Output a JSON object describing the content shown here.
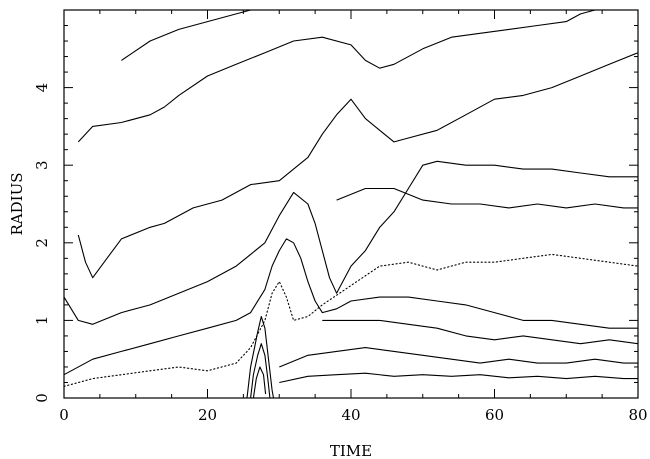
{
  "chart_data": {
    "type": "contour",
    "title": "",
    "xlabel": "TIME",
    "ylabel": "RADIUS",
    "xlim": [
      0,
      80
    ],
    "ylim": [
      0,
      5
    ],
    "xticks": [
      0,
      20,
      40,
      60,
      80
    ],
    "yticks": [
      0,
      1,
      2,
      3,
      4
    ],
    "grid": false,
    "legend": "none",
    "series": [
      {
        "style": "solid",
        "points": [
          [
            0,
            0.3
          ],
          [
            4,
            0.5
          ],
          [
            8,
            0.6
          ],
          [
            12,
            0.7
          ],
          [
            16,
            0.8
          ],
          [
            20,
            0.9
          ],
          [
            24,
            1.0
          ],
          [
            26,
            1.1
          ],
          [
            28,
            1.4
          ],
          [
            29,
            1.7
          ],
          [
            30,
            1.9
          ],
          [
            31,
            2.05
          ],
          [
            32,
            2.0
          ],
          [
            33,
            1.8
          ],
          [
            34,
            1.5
          ],
          [
            35,
            1.25
          ],
          [
            36,
            1.1
          ],
          [
            38,
            1.15
          ],
          [
            40,
            1.25
          ],
          [
            44,
            1.3
          ],
          [
            48,
            1.3
          ],
          [
            52,
            1.25
          ],
          [
            56,
            1.2
          ],
          [
            60,
            1.1
          ],
          [
            64,
            1.0
          ],
          [
            68,
            1.0
          ],
          [
            72,
            0.95
          ],
          [
            76,
            0.9
          ],
          [
            80,
            0.9
          ]
        ]
      },
      {
        "style": "solid",
        "points": [
          [
            0,
            1.3
          ],
          [
            2,
            1.0
          ],
          [
            4,
            0.95
          ],
          [
            8,
            1.1
          ],
          [
            12,
            1.2
          ],
          [
            16,
            1.35
          ],
          [
            20,
            1.5
          ],
          [
            24,
            1.7
          ],
          [
            26,
            1.85
          ],
          [
            28,
            2.0
          ],
          [
            30,
            2.35
          ],
          [
            32,
            2.65
          ],
          [
            34,
            2.5
          ],
          [
            35,
            2.25
          ],
          [
            36,
            1.9
          ],
          [
            37,
            1.55
          ],
          [
            38,
            1.35
          ],
          [
            40,
            1.7
          ],
          [
            42,
            1.9
          ],
          [
            44,
            2.2
          ],
          [
            46,
            2.4
          ],
          [
            48,
            2.7
          ],
          [
            50,
            3.0
          ],
          [
            52,
            3.05
          ],
          [
            56,
            3.0
          ],
          [
            60,
            3.0
          ],
          [
            64,
            2.95
          ],
          [
            68,
            2.95
          ],
          [
            72,
            2.9
          ],
          [
            76,
            2.85
          ],
          [
            80,
            2.85
          ]
        ]
      },
      {
        "style": "solid",
        "points": [
          [
            2,
            2.1
          ],
          [
            3,
            1.75
          ],
          [
            4,
            1.55
          ],
          [
            6,
            1.8
          ],
          [
            8,
            2.05
          ],
          [
            12,
            2.2
          ],
          [
            14,
            2.25
          ],
          [
            18,
            2.45
          ],
          [
            22,
            2.55
          ],
          [
            26,
            2.75
          ],
          [
            30,
            2.8
          ],
          [
            34,
            3.1
          ],
          [
            36,
            3.4
          ],
          [
            38,
            3.65
          ],
          [
            40,
            3.85
          ],
          [
            42,
            3.6
          ],
          [
            44,
            3.45
          ],
          [
            46,
            3.3
          ],
          [
            48,
            3.35
          ],
          [
            52,
            3.45
          ],
          [
            56,
            3.65
          ],
          [
            60,
            3.85
          ],
          [
            64,
            3.9
          ],
          [
            68,
            4.0
          ],
          [
            72,
            4.15
          ],
          [
            76,
            4.3
          ],
          [
            80,
            4.45
          ]
        ]
      },
      {
        "style": "solid",
        "points": [
          [
            2,
            3.3
          ],
          [
            4,
            3.5
          ],
          [
            8,
            3.55
          ],
          [
            12,
            3.65
          ],
          [
            14,
            3.75
          ],
          [
            16,
            3.9
          ],
          [
            20,
            4.15
          ],
          [
            24,
            4.3
          ],
          [
            28,
            4.45
          ],
          [
            32,
            4.6
          ],
          [
            36,
            4.65
          ],
          [
            40,
            4.55
          ],
          [
            42,
            4.35
          ],
          [
            44,
            4.25
          ],
          [
            46,
            4.3
          ],
          [
            50,
            4.5
          ],
          [
            54,
            4.65
          ],
          [
            58,
            4.7
          ],
          [
            62,
            4.75
          ],
          [
            66,
            4.8
          ],
          [
            70,
            4.85
          ],
          [
            72,
            4.95
          ],
          [
            74,
            5.0
          ]
        ]
      },
      {
        "style": "solid",
        "points": [
          [
            8,
            4.35
          ],
          [
            12,
            4.6
          ],
          [
            16,
            4.75
          ],
          [
            20,
            4.85
          ],
          [
            24,
            4.95
          ],
          [
            26,
            5.0
          ]
        ]
      },
      {
        "style": "solid",
        "points": [
          [
            38,
            2.55
          ],
          [
            42,
            2.7
          ],
          [
            46,
            2.7
          ],
          [
            50,
            2.55
          ],
          [
            54,
            2.5
          ],
          [
            58,
            2.5
          ],
          [
            62,
            2.45
          ],
          [
            66,
            2.5
          ],
          [
            70,
            2.45
          ],
          [
            74,
            2.5
          ],
          [
            78,
            2.45
          ],
          [
            80,
            2.45
          ]
        ]
      },
      {
        "style": "solid",
        "points": [
          [
            36,
            1.0
          ],
          [
            40,
            1.0
          ],
          [
            44,
            1.0
          ],
          [
            48,
            0.95
          ],
          [
            52,
            0.9
          ],
          [
            56,
            0.8
          ],
          [
            60,
            0.75
          ],
          [
            64,
            0.8
          ],
          [
            68,
            0.75
          ],
          [
            72,
            0.7
          ],
          [
            76,
            0.75
          ],
          [
            80,
            0.7
          ]
        ]
      },
      {
        "style": "solid",
        "points": [
          [
            30,
            0.4
          ],
          [
            34,
            0.55
          ],
          [
            38,
            0.6
          ],
          [
            42,
            0.65
          ],
          [
            46,
            0.6
          ],
          [
            50,
            0.55
          ],
          [
            54,
            0.5
          ],
          [
            58,
            0.45
          ],
          [
            62,
            0.5
          ],
          [
            66,
            0.45
          ],
          [
            70,
            0.45
          ],
          [
            74,
            0.5
          ],
          [
            78,
            0.45
          ],
          [
            80,
            0.45
          ]
        ]
      },
      {
        "style": "solid",
        "points": [
          [
            30,
            0.2
          ],
          [
            34,
            0.28
          ],
          [
            38,
            0.3
          ],
          [
            42,
            0.32
          ],
          [
            46,
            0.28
          ],
          [
            50,
            0.3
          ],
          [
            54,
            0.28
          ],
          [
            58,
            0.3
          ],
          [
            62,
            0.26
          ],
          [
            66,
            0.28
          ],
          [
            70,
            0.25
          ],
          [
            74,
            0.28
          ],
          [
            78,
            0.25
          ],
          [
            80,
            0.25
          ]
        ]
      },
      {
        "style": "solid",
        "points": [
          [
            25.5,
            0.0
          ],
          [
            26,
            0.4
          ],
          [
            27,
            0.85
          ],
          [
            27.5,
            1.05
          ],
          [
            28,
            0.9
          ],
          [
            28.5,
            0.5
          ],
          [
            29,
            0.1
          ],
          [
            29.2,
            0.0
          ]
        ]
      },
      {
        "style": "solid",
        "points": [
          [
            26,
            0.0
          ],
          [
            26.4,
            0.3
          ],
          [
            27,
            0.55
          ],
          [
            27.5,
            0.7
          ],
          [
            28,
            0.55
          ],
          [
            28.4,
            0.25
          ],
          [
            28.7,
            0.0
          ]
        ]
      },
      {
        "style": "solid",
        "points": [
          [
            26.4,
            0.0
          ],
          [
            26.8,
            0.25
          ],
          [
            27.3,
            0.4
          ],
          [
            27.8,
            0.3
          ],
          [
            28.1,
            0.05
          ]
        ]
      },
      {
        "style": "dotted",
        "points": [
          [
            0,
            0.15
          ],
          [
            4,
            0.25
          ],
          [
            8,
            0.3
          ],
          [
            12,
            0.35
          ],
          [
            16,
            0.4
          ],
          [
            20,
            0.35
          ],
          [
            24,
            0.45
          ],
          [
            26,
            0.65
          ],
          [
            28,
            1.0
          ],
          [
            29,
            1.35
          ],
          [
            30,
            1.5
          ],
          [
            31,
            1.3
          ],
          [
            32,
            1.0
          ],
          [
            34,
            1.05
          ],
          [
            36,
            1.2
          ],
          [
            40,
            1.45
          ],
          [
            44,
            1.7
          ],
          [
            48,
            1.75
          ],
          [
            52,
            1.65
          ],
          [
            56,
            1.75
          ],
          [
            60,
            1.75
          ],
          [
            64,
            1.8
          ],
          [
            68,
            1.85
          ],
          [
            72,
            1.8
          ],
          [
            76,
            1.75
          ],
          [
            80,
            1.7
          ]
        ]
      }
    ]
  }
}
